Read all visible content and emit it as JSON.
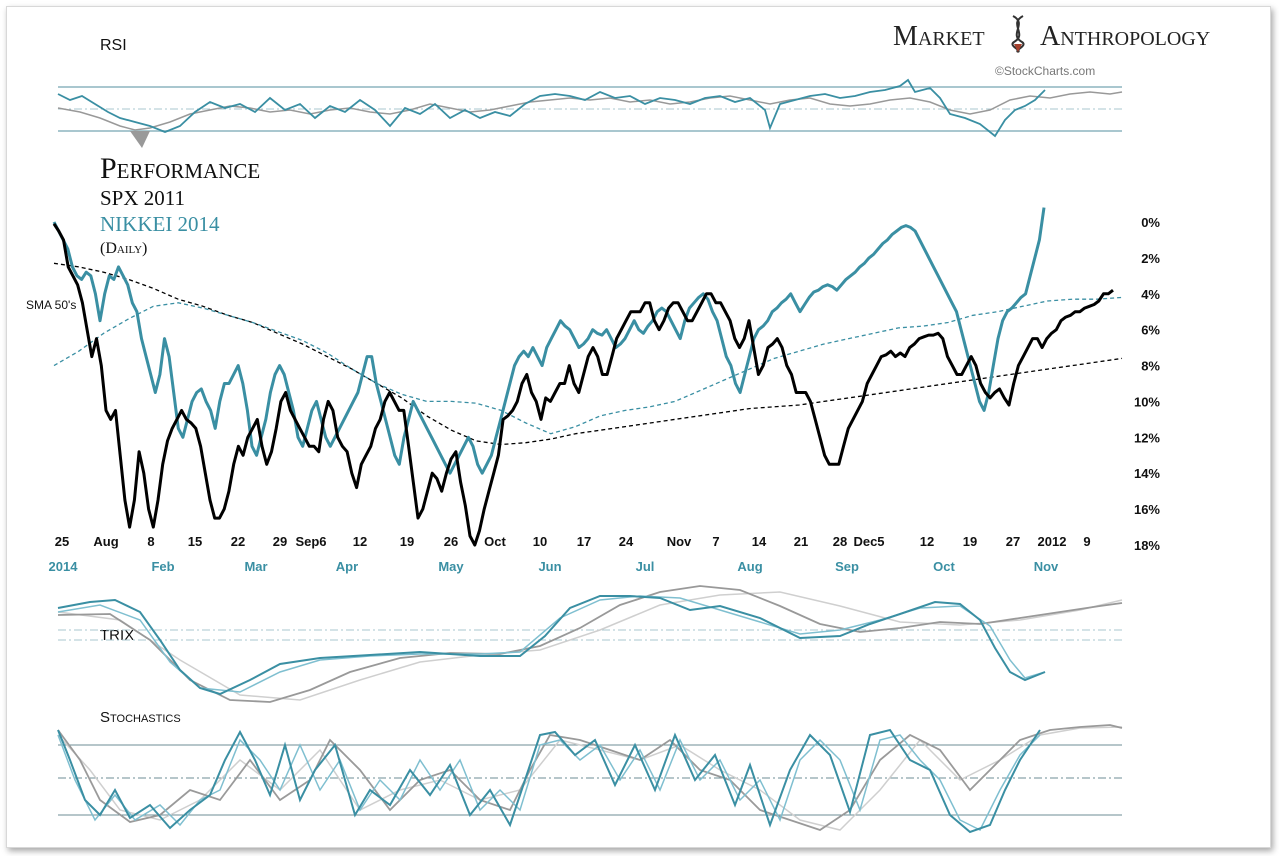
{
  "brand": {
    "name_left": "Market",
    "name_right": "Anthropology",
    "credit": "©StockCharts.com"
  },
  "colors": {
    "spx": "#000000",
    "nikkei": "#3a8fa3",
    "grid": "#a9c7cf",
    "muted_gray": "#9a9a9a"
  },
  "panels": {
    "rsi_label": "RSI",
    "trix_label": "TRIX",
    "stoch_label": "Stochastics"
  },
  "main": {
    "title": "Performance",
    "series1_label": "SPX 2011",
    "series2_label": "NIKKEI 2014",
    "frequency": "(Daily)",
    "sma_label": "SMA 50's"
  },
  "chart_data": {
    "type": "line",
    "title": "Performance",
    "ylabel": "",
    "ylim": [
      0,
      18
    ],
    "y_inverted": true,
    "y_ticks": [
      "0%",
      "2%",
      "4%",
      "6%",
      "8%",
      "10%",
      "12%",
      "14%",
      "16%",
      "18%"
    ],
    "x_top_labels": [
      "25",
      "Aug",
      "8",
      "15",
      "22",
      "29",
      "Sep6",
      "12",
      "19",
      "26",
      "Oct",
      "10",
      "17",
      "24",
      "Nov",
      "7",
      "14",
      "21",
      "28",
      "Dec5",
      "12",
      "19",
      "27",
      "2012",
      "9"
    ],
    "x_bottom_labels": [
      "2014",
      "Feb",
      "Mar",
      "Apr",
      "May",
      "Jun",
      "Jul",
      "Aug",
      "Sep",
      "Oct",
      "Nov"
    ],
    "series": [
      {
        "name": "SPX 2011",
        "color": "#000000",
        "values": [
          0.1,
          0.5,
          1.0,
          2.5,
          3.0,
          3.5,
          4.5,
          6.0,
          7.5,
          6.5,
          8.0,
          10.5,
          11.0,
          10.5,
          13.0,
          15.5,
          17.0,
          15.5,
          12.8,
          14.0,
          16.0,
          17.0,
          15.5,
          13.5,
          12.2,
          11.5,
          11.0,
          10.5,
          11.0,
          11.2,
          11.5,
          12.5,
          14.0,
          15.5,
          16.5,
          16.5,
          16.0,
          15.0,
          13.5,
          12.5,
          13.0,
          12.0,
          11.5,
          11.0,
          12.5,
          13.5,
          12.8,
          11.5,
          10.0,
          9.5,
          10.5,
          11.0,
          11.5,
          12.0,
          12.5,
          12.5,
          12.8,
          11.0,
          10.0,
          10.5,
          12.0,
          12.5,
          12.8,
          14.0,
          14.8,
          13.5,
          13.0,
          12.5,
          11.5,
          11.0,
          10.0,
          9.5,
          10.0,
          10.5,
          10.5,
          12.5,
          14.5,
          16.5,
          16.0,
          15.0,
          14.0,
          14.3,
          15.0,
          14.0,
          13.2,
          12.8,
          14.5,
          15.8,
          17.5,
          18.0,
          17.2,
          16.0,
          15.0,
          14.0,
          13.0,
          11.0,
          10.8,
          10.5,
          10.0,
          9.0,
          8.5,
          9.5,
          10.0,
          11.0,
          9.8,
          10.0,
          9.5,
          9.0,
          9.0,
          8.0,
          9.0,
          9.5,
          8.5,
          7.5,
          7.0,
          7.5,
          8.5,
          8.5,
          7.5,
          6.5,
          6.0,
          5.5,
          5.0,
          5.0,
          5.0,
          4.5,
          4.5,
          5.5,
          6.0,
          5.5,
          4.8,
          4.5,
          4.5,
          5.0,
          5.5,
          5.5,
          5.0,
          4.5,
          4.0,
          4.0,
          4.5,
          4.5,
          5.0,
          5.5,
          6.5,
          7.0,
          6.5,
          5.5,
          7.0,
          8.5,
          8.0,
          7.0,
          6.8,
          6.5,
          7.0,
          8.0,
          8.5,
          9.5,
          9.5,
          9.5,
          10.0,
          11.0,
          12.0,
          13.0,
          13.5,
          13.5,
          13.5,
          12.5,
          11.5,
          11.0,
          10.5,
          10.0,
          9.0,
          8.5,
          8.0,
          7.5,
          7.4,
          7.2,
          7.5,
          7.3,
          7.5,
          7.0,
          6.8,
          6.5,
          6.4,
          6.3,
          6.3,
          6.2,
          6.5,
          7.5,
          8.0,
          8.5,
          8.5,
          8.0,
          7.5,
          8.0,
          9.0,
          9.5,
          9.8,
          9.5,
          9.3,
          9.8,
          10.2,
          9.0,
          8.0,
          7.5,
          7.0,
          6.5,
          6.5,
          7.0,
          6.5,
          6.2,
          6.0,
          5.5,
          5.3,
          5.2,
          5.0,
          5.0,
          4.8,
          4.7,
          4.6,
          4.4,
          4.0,
          4.0,
          3.8
        ]
      },
      {
        "name": "NIKKEI 2014",
        "color": "#3a8fa3",
        "values": [
          0.0,
          0.5,
          1.0,
          1.5,
          2.5,
          3.0,
          3.2,
          2.8,
          3.0,
          4.0,
          5.5,
          4.0,
          3.0,
          3.2,
          2.5,
          3.0,
          3.5,
          4.5,
          5.0,
          6.5,
          7.5,
          8.5,
          9.5,
          8.5,
          6.5,
          7.5,
          9.5,
          11.5,
          12.0,
          11.0,
          10.0,
          9.5,
          9.3,
          10.0,
          10.5,
          11.5,
          10.0,
          9.0,
          9.0,
          8.5,
          8.0,
          9.0,
          10.5,
          12.5,
          13.0,
          12.0,
          11.0,
          9.5,
          8.5,
          8.0,
          8.5,
          9.5,
          10.5,
          12.0,
          12.5,
          11.5,
          10.5,
          10.0,
          11.0,
          12.0,
          12.5,
          12.0,
          11.5,
          11.0,
          10.5,
          10.0,
          9.5,
          8.5,
          7.5,
          7.5,
          9.0,
          10.0,
          11.0,
          12.0,
          13.0,
          13.5,
          12.0,
          11.0,
          10.0,
          10.5,
          11.0,
          11.5,
          12.0,
          12.5,
          13.0,
          13.5,
          14.0,
          13.5,
          13.0,
          12.5,
          12.0,
          12.5,
          13.5,
          14.0,
          13.5,
          13.0,
          12.0,
          11.0,
          10.0,
          9.0,
          8.0,
          7.5,
          7.2,
          7.5,
          7.0,
          7.5,
          8.0,
          7.0,
          6.5,
          6.0,
          5.5,
          5.8,
          6.0,
          6.5,
          7.0,
          6.8,
          6.5,
          6.0,
          6.2,
          6.3,
          6.0,
          6.5,
          7.0,
          6.8,
          6.5,
          6.0,
          5.5,
          6.0,
          6.2,
          5.8,
          5.5,
          5.0,
          4.8,
          5.0,
          5.5,
          6.0,
          6.5,
          5.5,
          4.8,
          4.5,
          4.2,
          4.0,
          4.3,
          5.0,
          5.5,
          6.5,
          7.5,
          8.0,
          9.0,
          9.5,
          8.5,
          7.5,
          6.5,
          6.0,
          5.8,
          5.5,
          5.0,
          4.8,
          4.5,
          4.3,
          4.0,
          4.5,
          5.0,
          4.6,
          4.2,
          3.9,
          3.8,
          3.6,
          3.5,
          3.6,
          3.8,
          3.5,
          3.2,
          3.0,
          2.8,
          2.5,
          2.3,
          2.0,
          1.8,
          1.5,
          1.2,
          1.0,
          0.7,
          0.5,
          0.3,
          0.2,
          0.3,
          0.5,
          1.0,
          1.5,
          2.0,
          2.5,
          3.0,
          3.5,
          4.0,
          4.5,
          5.0,
          6.0,
          7.0,
          8.0,
          9.0,
          10.0,
          10.5,
          9.5,
          8.0,
          6.5,
          5.5,
          5.0,
          4.8,
          4.5,
          4.2,
          4.0,
          3.0,
          2.0,
          1.0,
          -0.8
        ]
      },
      {
        "name": "SMA 50 (SPX 2011)",
        "color": "#000000",
        "dashed": true,
        "values": [
          2.3,
          2.5,
          2.8,
          3.2,
          3.7,
          4.3,
          4.7,
          5.2,
          5.6,
          6.2,
          6.8,
          7.5,
          8.2,
          9.0,
          9.8,
          10.8,
          11.6,
          12.2,
          12.4,
          12.3,
          12.1,
          11.8,
          11.6,
          11.4,
          11.2,
          11.0,
          10.8,
          10.6,
          10.4,
          10.3,
          10.2,
          10.0,
          9.8,
          9.6,
          9.4,
          9.2,
          9.0,
          8.8,
          8.6,
          8.4,
          8.2,
          8.0,
          7.8,
          7.6
        ]
      },
      {
        "name": "SMA 50 (NIKKEI 2014)",
        "color": "#3a8fa3",
        "dashed": true,
        "values": [
          8.0,
          7.2,
          6.2,
          5.4,
          4.7,
          4.5,
          4.8,
          5.2,
          5.6,
          6.1,
          6.6,
          7.3,
          8.2,
          9.0,
          9.6,
          10.0,
          10.0,
          10.1,
          10.5,
          11.2,
          11.8,
          11.4,
          10.8,
          10.5,
          10.3,
          10.0,
          9.4,
          8.8,
          8.2,
          7.6,
          7.2,
          6.8,
          6.5,
          6.2,
          5.9,
          5.8,
          5.6,
          5.2,
          5.0,
          4.7,
          4.4,
          4.3,
          4.3,
          4.2
        ]
      }
    ]
  }
}
